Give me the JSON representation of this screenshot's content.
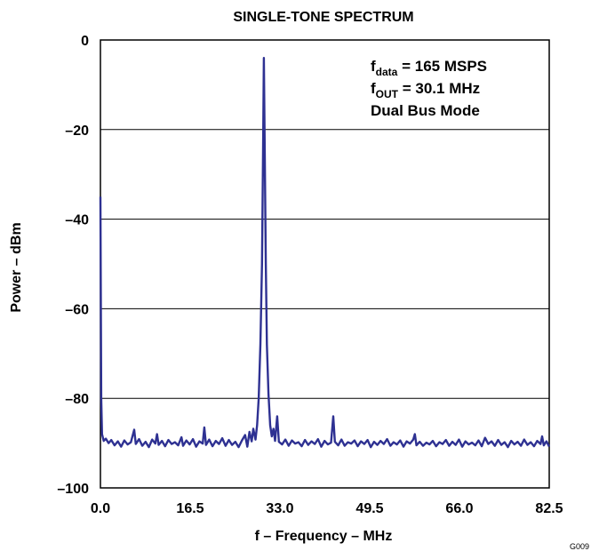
{
  "chart_data": {
    "type": "line",
    "title": "SINGLE-TONE SPECTRUM",
    "xlabel": "f – Frequency – MHz",
    "ylabel": "Power – dBm",
    "xlim": [
      0,
      82.5
    ],
    "ylim": [
      -100,
      0
    ],
    "x_ticks": [
      "0.0",
      "16.5",
      "33.0",
      "49.5",
      "66.0",
      "82.5"
    ],
    "y_ticks": [
      "0",
      "–20",
      "–40",
      "–60",
      "–80",
      "–100"
    ],
    "grid": "horizontal",
    "line_color": "#2e3192",
    "annotations": [
      {
        "main": "f",
        "sub": "data",
        "rest": " = 165 MSPS"
      },
      {
        "main": "f",
        "sub": "OUT",
        "rest": " = 30.1 MHz"
      },
      {
        "main": "Dual Bus Mode",
        "sub": "",
        "rest": ""
      }
    ],
    "figure_code": "G009",
    "series": [
      {
        "values": [
          [
            0.0,
            -35
          ],
          [
            0.15,
            -80
          ],
          [
            0.3,
            -88
          ],
          [
            0.6,
            -89.5
          ],
          [
            1.0,
            -89
          ],
          [
            1.5,
            -90
          ],
          [
            2.0,
            -89.3
          ],
          [
            2.6,
            -90.5
          ],
          [
            3.2,
            -89.6
          ],
          [
            3.8,
            -90.8
          ],
          [
            4.4,
            -89.4
          ],
          [
            5.0,
            -90.3
          ],
          [
            5.6,
            -89.8
          ],
          [
            6.2,
            -87
          ],
          [
            6.5,
            -90.2
          ],
          [
            7.1,
            -89.1
          ],
          [
            7.7,
            -90.6
          ],
          [
            8.3,
            -89.7
          ],
          [
            8.9,
            -90.9
          ],
          [
            9.5,
            -89.2
          ],
          [
            10.1,
            -90.1
          ],
          [
            10.4,
            -88
          ],
          [
            10.7,
            -90.4
          ],
          [
            11.3,
            -89.5
          ],
          [
            11.9,
            -90.7
          ],
          [
            12.5,
            -89.3
          ],
          [
            13.1,
            -90.2
          ],
          [
            13.7,
            -89.8
          ],
          [
            14.3,
            -90.5
          ],
          [
            14.9,
            -88.7
          ],
          [
            15.2,
            -90.6
          ],
          [
            15.8,
            -89.4
          ],
          [
            16.4,
            -90.3
          ],
          [
            17.0,
            -89.1
          ],
          [
            17.6,
            -90.8
          ],
          [
            18.2,
            -89.6
          ],
          [
            18.8,
            -90.1
          ],
          [
            19.1,
            -86.5
          ],
          [
            19.4,
            -90.4
          ],
          [
            20.0,
            -89.2
          ],
          [
            20.6,
            -90.7
          ],
          [
            21.2,
            -89.5
          ],
          [
            21.8,
            -90.2
          ],
          [
            22.4,
            -88.9
          ],
          [
            23.0,
            -90.6
          ],
          [
            23.6,
            -89.3
          ],
          [
            24.2,
            -90.4
          ],
          [
            24.8,
            -89.7
          ],
          [
            25.4,
            -90.9
          ],
          [
            26.0,
            -89.4
          ],
          [
            26.6,
            -88.2
          ],
          [
            27.0,
            -90.8
          ],
          [
            27.4,
            -87.5
          ],
          [
            27.8,
            -89.6
          ],
          [
            28.1,
            -86.8
          ],
          [
            28.5,
            -89.2
          ],
          [
            28.8,
            -86
          ],
          [
            29.1,
            -80
          ],
          [
            29.4,
            -68
          ],
          [
            29.7,
            -50
          ],
          [
            29.9,
            -25
          ],
          [
            30.05,
            -4
          ],
          [
            30.2,
            -25
          ],
          [
            30.4,
            -50
          ],
          [
            30.6,
            -68
          ],
          [
            30.9,
            -79
          ],
          [
            31.2,
            -86
          ],
          [
            31.5,
            -88.5
          ],
          [
            31.8,
            -86.8
          ],
          [
            32.1,
            -89.5
          ],
          [
            32.5,
            -84
          ],
          [
            32.8,
            -89.7
          ],
          [
            33.4,
            -90.3
          ],
          [
            34.0,
            -89.2
          ],
          [
            34.6,
            -90.6
          ],
          [
            35.2,
            -89.4
          ],
          [
            35.8,
            -90.1
          ],
          [
            36.4,
            -89.8
          ],
          [
            37.0,
            -90.7
          ],
          [
            37.6,
            -89.3
          ],
          [
            38.2,
            -90.4
          ],
          [
            38.8,
            -89.6
          ],
          [
            39.4,
            -90.2
          ],
          [
            40.0,
            -89.1
          ],
          [
            40.6,
            -90.8
          ],
          [
            41.2,
            -89.5
          ],
          [
            41.8,
            -90.3
          ],
          [
            42.4,
            -89.9
          ],
          [
            42.8,
            -84
          ],
          [
            43.1,
            -89.7
          ],
          [
            43.7,
            -90.5
          ],
          [
            44.3,
            -89.2
          ],
          [
            44.9,
            -90.6
          ],
          [
            45.5,
            -89.8
          ],
          [
            46.1,
            -90.1
          ],
          [
            46.7,
            -89.4
          ],
          [
            47.3,
            -90.7
          ],
          [
            47.9,
            -89.6
          ],
          [
            48.5,
            -90.2
          ],
          [
            49.1,
            -89.3
          ],
          [
            49.7,
            -90.9
          ],
          [
            50.3,
            -89.7
          ],
          [
            50.9,
            -90.4
          ],
          [
            51.5,
            -89.5
          ],
          [
            52.1,
            -90.2
          ],
          [
            52.7,
            -89.1
          ],
          [
            53.3,
            -90.6
          ],
          [
            53.9,
            -89.8
          ],
          [
            54.5,
            -90.3
          ],
          [
            55.1,
            -89.4
          ],
          [
            55.7,
            -90.8
          ],
          [
            56.3,
            -89.6
          ],
          [
            56.9,
            -90.1
          ],
          [
            57.5,
            -89.2
          ],
          [
            57.8,
            -88
          ],
          [
            58.1,
            -90.5
          ],
          [
            58.7,
            -89.7
          ],
          [
            59.3,
            -90.6
          ],
          [
            59.9,
            -89.9
          ],
          [
            60.5,
            -90.3
          ],
          [
            61.1,
            -89.5
          ],
          [
            61.7,
            -90.7
          ],
          [
            62.3,
            -89.8
          ],
          [
            62.9,
            -90.2
          ],
          [
            63.5,
            -89.3
          ],
          [
            64.1,
            -90.6
          ],
          [
            64.7,
            -89.7
          ],
          [
            65.3,
            -90.4
          ],
          [
            65.9,
            -89.2
          ],
          [
            66.5,
            -90.8
          ],
          [
            67.1,
            -89.6
          ],
          [
            67.7,
            -90.3
          ],
          [
            68.3,
            -89.9
          ],
          [
            68.9,
            -90.5
          ],
          [
            69.5,
            -89.4
          ],
          [
            70.1,
            -90.7
          ],
          [
            70.7,
            -88.8
          ],
          [
            71.3,
            -90.2
          ],
          [
            71.9,
            -89.6
          ],
          [
            72.5,
            -90.6
          ],
          [
            73.1,
            -89.3
          ],
          [
            73.7,
            -90.4
          ],
          [
            74.3,
            -89.8
          ],
          [
            74.9,
            -90.9
          ],
          [
            75.5,
            -89.5
          ],
          [
            76.1,
            -90.3
          ],
          [
            76.7,
            -89.7
          ],
          [
            77.3,
            -90.6
          ],
          [
            77.9,
            -89.2
          ],
          [
            78.5,
            -90.4
          ],
          [
            79.1,
            -89.8
          ],
          [
            79.7,
            -90.7
          ],
          [
            80.3,
            -89.5
          ],
          [
            80.9,
            -90.2
          ],
          [
            81.2,
            -88.5
          ],
          [
            81.5,
            -90.5
          ],
          [
            82.0,
            -89.6
          ],
          [
            82.5,
            -90.8
          ]
        ]
      }
    ]
  }
}
